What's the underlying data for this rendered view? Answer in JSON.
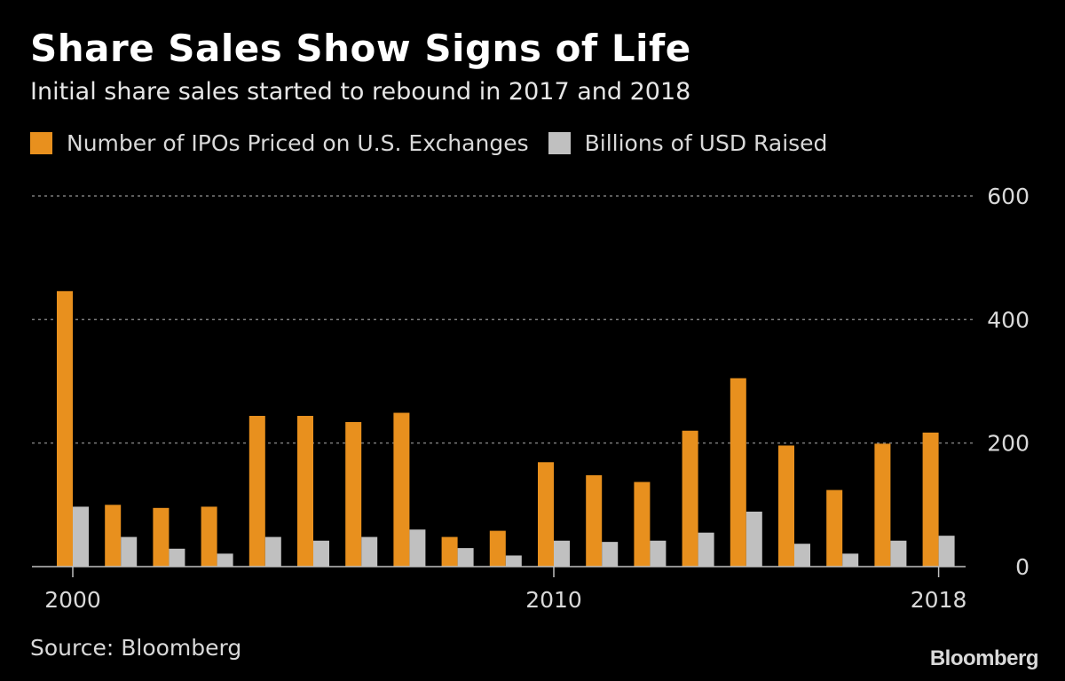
{
  "chart_data": {
    "type": "bar",
    "title": "Share Sales Show Signs of Life",
    "subtitle": "Initial share sales started to rebound in 2017 and 2018",
    "x": [
      2000,
      2001,
      2002,
      2003,
      2004,
      2005,
      2006,
      2007,
      2008,
      2009,
      2010,
      2011,
      2012,
      2013,
      2014,
      2015,
      2016,
      2017,
      2018
    ],
    "x_tick_labels": [
      "2000",
      "2010",
      "2018"
    ],
    "series": [
      {
        "name": "Number of IPOs Priced on U.S. Exchanges",
        "color": "#e8901e",
        "values": [
          446,
          100,
          95,
          97,
          244,
          244,
          234,
          249,
          48,
          58,
          169,
          148,
          137,
          220,
          305,
          196,
          124,
          199,
          217
        ]
      },
      {
        "name": "Billions of USD Raised",
        "color": "#c0c0c0",
        "values": [
          97,
          48,
          29,
          21,
          48,
          42,
          48,
          60,
          30,
          18,
          42,
          40,
          42,
          55,
          89,
          37,
          21,
          42,
          50
        ]
      }
    ],
    "ylim": [
      0,
      600
    ],
    "yticks": [
      0,
      200,
      400,
      600
    ],
    "grid": true,
    "legend_position": "top-left",
    "xlabel": "",
    "ylabel": ""
  },
  "source": "Source: Bloomberg",
  "logo": "Bloomberg"
}
